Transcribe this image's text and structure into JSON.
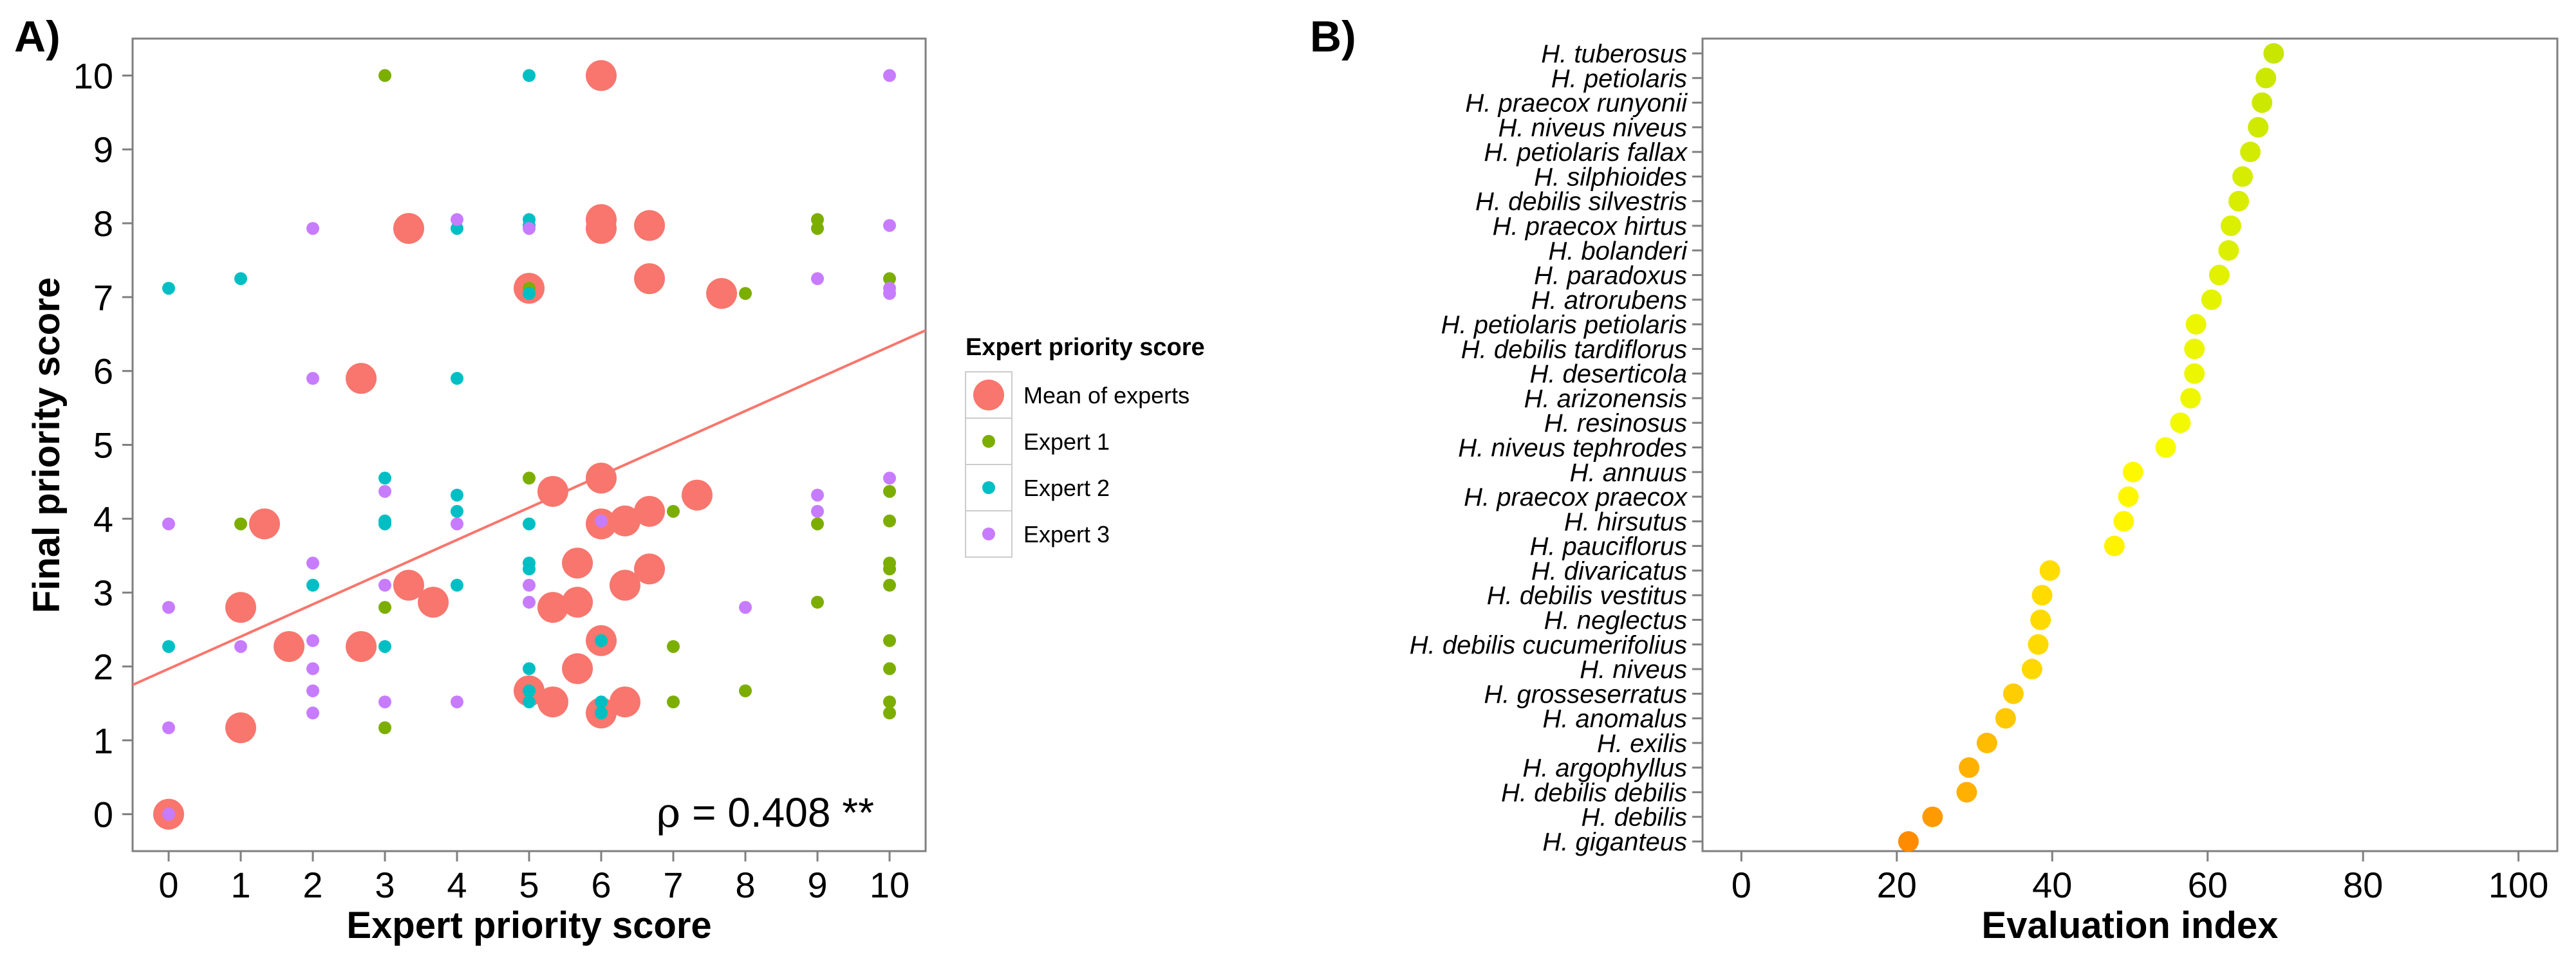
{
  "chart_data": [
    {
      "type": "scatter",
      "panel_label": "A)",
      "xlabel": "Expert priority score",
      "ylabel": "Final priority score",
      "xlim": [
        -0.5,
        10.5
      ],
      "ylim": [
        -0.5,
        10.5
      ],
      "xticks": [
        "0",
        "1",
        "2",
        "3",
        "4",
        "5",
        "6",
        "7",
        "8",
        "9",
        "10"
      ],
      "yticks": [
        "0",
        "1",
        "2",
        "3",
        "4",
        "5",
        "6",
        "7",
        "8",
        "9",
        "10"
      ],
      "grid": false,
      "legend": {
        "title": "Expert priority score",
        "position": "right"
      },
      "series": [
        {
          "name": "Mean of experts",
          "color": "#f8766d",
          "points": [
            [
              0,
              0
            ],
            [
              1,
              1.17
            ],
            [
              1,
              2.8
            ],
            [
              1.33,
              3.93
            ],
            [
              1.67,
              2.27
            ],
            [
              2.67,
              2.27
            ],
            [
              2.67,
              5.9
            ],
            [
              3.33,
              3.1
            ],
            [
              3.33,
              7.93
            ],
            [
              3.67,
              2.87
            ],
            [
              5,
              1.67
            ],
            [
              5,
              7.12
            ],
            [
              5.33,
              1.52
            ],
            [
              5.33,
              2.8
            ],
            [
              5.33,
              4.37
            ],
            [
              5.67,
              1.97
            ],
            [
              5.67,
              2.87
            ],
            [
              5.67,
              3.4
            ],
            [
              6,
              1.37
            ],
            [
              6,
              2.35
            ],
            [
              6,
              3.93
            ],
            [
              6,
              4.55
            ],
            [
              6,
              7.93
            ],
            [
              6,
              8.05
            ],
            [
              6,
              10
            ],
            [
              6.33,
              1.52
            ],
            [
              6.33,
              3.1
            ],
            [
              6.33,
              3.97
            ],
            [
              6.67,
              3.32
            ],
            [
              6.67,
              4.1
            ],
            [
              6.67,
              7.25
            ],
            [
              6.67,
              7.97
            ],
            [
              7.33,
              4.32
            ],
            [
              7.67,
              7.05
            ]
          ]
        },
        {
          "name": "Expert 1",
          "color": "#7cae00",
          "points": [
            [
              1,
              3.93
            ],
            [
              3,
              1.17
            ],
            [
              3,
              2.8
            ],
            [
              3,
              10
            ],
            [
              5,
              4.55
            ],
            [
              5,
              7.12
            ],
            [
              5,
              1.67
            ],
            [
              6,
              2.35
            ],
            [
              6,
              1.37
            ],
            [
              7,
              2.27
            ],
            [
              7,
              1.52
            ],
            [
              7,
              4.1
            ],
            [
              8,
              1.67
            ],
            [
              8,
              7.05
            ],
            [
              9,
              2.87
            ],
            [
              9,
              3.93
            ],
            [
              9,
              7.93
            ],
            [
              9,
              8.05
            ],
            [
              10,
              1.37
            ],
            [
              10,
              1.52
            ],
            [
              10,
              1.97
            ],
            [
              10,
              2.35
            ],
            [
              10,
              3.1
            ],
            [
              10,
              3.32
            ],
            [
              10,
              3.4
            ],
            [
              10,
              3.97
            ],
            [
              10,
              4.37
            ],
            [
              10,
              7.25
            ]
          ]
        },
        {
          "name": "Expert 2",
          "color": "#00bfc4",
          "points": [
            [
              0,
              2.27
            ],
            [
              0,
              7.12
            ],
            [
              1,
              7.25
            ],
            [
              2,
              3.1
            ],
            [
              3,
              2.27
            ],
            [
              3,
              3.93
            ],
            [
              3,
              3.97
            ],
            [
              3,
              4.55
            ],
            [
              4,
              3.1
            ],
            [
              4,
              4.1
            ],
            [
              4,
              4.32
            ],
            [
              4,
              5.9
            ],
            [
              4,
              7.93
            ],
            [
              5,
              1.52
            ],
            [
              5,
              1.67
            ],
            [
              5,
              1.97
            ],
            [
              5,
              3.32
            ],
            [
              5,
              3.4
            ],
            [
              5,
              3.93
            ],
            [
              5,
              7.05
            ],
            [
              5,
              7.97
            ],
            [
              5,
              8.05
            ],
            [
              5,
              10
            ],
            [
              6,
              1.37
            ],
            [
              6,
              1.52
            ],
            [
              6,
              2.35
            ]
          ]
        },
        {
          "name": "Expert 3",
          "color": "#c77cff",
          "points": [
            [
              0,
              0
            ],
            [
              0,
              1.17
            ],
            [
              0,
              2.8
            ],
            [
              0,
              3.93
            ],
            [
              1,
              2.27
            ],
            [
              2,
              1.37
            ],
            [
              2,
              1.67
            ],
            [
              2,
              1.97
            ],
            [
              2,
              2.35
            ],
            [
              2,
              3.4
            ],
            [
              2,
              5.9
            ],
            [
              2,
              7.93
            ],
            [
              3,
              3.1
            ],
            [
              3,
              4.37
            ],
            [
              3,
              1.52
            ],
            [
              4,
              1.52
            ],
            [
              4,
              3.93
            ],
            [
              4,
              8.05
            ],
            [
              5,
              2.87
            ],
            [
              5,
              3.1
            ],
            [
              5,
              7.93
            ],
            [
              6,
              3.97
            ],
            [
              8,
              2.8
            ],
            [
              9,
              4.1
            ],
            [
              9,
              4.32
            ],
            [
              9,
              7.25
            ],
            [
              10,
              4.55
            ],
            [
              10,
              7.05
            ],
            [
              10,
              7.12
            ],
            [
              10,
              7.97
            ],
            [
              10,
              10
            ]
          ]
        }
      ],
      "trend_line": {
        "color": "#f8766d",
        "from": [
          -0.5,
          1.75
        ],
        "to": [
          10.5,
          6.55
        ]
      },
      "annotation": {
        "symbol": "ρ",
        "text": " = 0.408 **"
      }
    },
    {
      "type": "dot",
      "panel_label": "B)",
      "xlabel": "Evaluation index",
      "xlim": [
        -5,
        105
      ],
      "xticks": [
        "0",
        "20",
        "40",
        "60",
        "80",
        "100"
      ],
      "grid": false,
      "color_scale": [
        "#ff8c00",
        "#ffd700",
        "#ffff00",
        "#c8e600"
      ],
      "categories": [
        "H. tuberosus",
        "H. petiolaris",
        "H. praecox runyonii",
        "H. niveus niveus",
        "H. petiolaris fallax",
        "H. silphioides",
        "H. debilis silvestris",
        "H. praecox hirtus",
        "H. bolanderi",
        "H. paradoxus",
        "H. atrorubens",
        "H. petiolaris petiolaris",
        "H. debilis tardiflorus",
        "H. deserticola",
        "H. arizonensis",
        "H. resinosus",
        "H. niveus tephrodes",
        "H. annuus",
        "H. praecox praecox",
        "H. hirsutus",
        "H. pauciflorus",
        "H. divaricatus",
        "H. debilis vestitus",
        "H. neglectus",
        "H. debilis cucumerifolius",
        "H. niveus",
        "H. grosseserratus",
        "H. anomalus",
        "H. exilis",
        "H. argophyllus",
        "H. debilis debilis",
        "H. debilis",
        "H. giganteus"
      ],
      "values": [
        68.5,
        67.5,
        67,
        66.5,
        65.5,
        64.5,
        64,
        63,
        62.7,
        61.5,
        60.5,
        58.5,
        58.3,
        58.3,
        57.8,
        56.5,
        54.6,
        50.4,
        49.8,
        49.2,
        48,
        39.7,
        38.7,
        38.5,
        38.2,
        37.4,
        35,
        34,
        31.6,
        29.3,
        29,
        24.6,
        21.5
      ]
    }
  ]
}
